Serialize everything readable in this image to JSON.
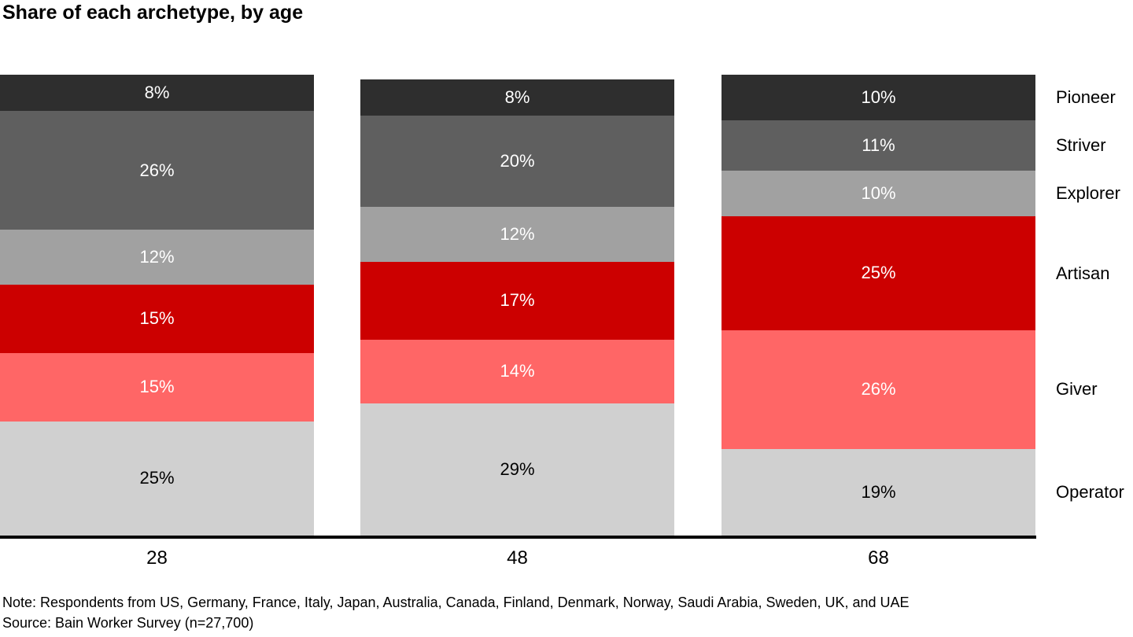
{
  "title": "Share of each archetype, by age",
  "notes": {
    "note": "Note: Respondents from US, Germany, France, Italy, Japan, Australia, Canada, Finland, Denmark, Norway, Saudi Arabia, Sweden, UK, and UAE",
    "source": "Source: Bain Worker Survey (n=27,700)"
  },
  "chart_data": {
    "type": "bar",
    "stacked": true,
    "orientation": "vertical",
    "title": "Share of each archetype, by age",
    "xlabel": "",
    "ylabel": "",
    "grid": false,
    "legend_position": "right-of-last-bar",
    "value_label_format": "{v}%",
    "categories": [
      "28",
      "48",
      "68"
    ],
    "series": [
      {
        "name": "Pioneer",
        "color": "#2e2e2e",
        "label_color": "#ffffff",
        "values": [
          8,
          8,
          10
        ]
      },
      {
        "name": "Striver",
        "color": "#5f5f5f",
        "label_color": "#ffffff",
        "values": [
          26,
          20,
          11
        ]
      },
      {
        "name": "Explorer",
        "color": "#a1a1a1",
        "label_color": "#ffffff",
        "values": [
          12,
          12,
          10
        ]
      },
      {
        "name": "Artisan",
        "color": "#cc0000",
        "label_color": "#ffffff",
        "values": [
          15,
          17,
          25
        ]
      },
      {
        "name": "Giver",
        "color": "#ff6666",
        "label_color": "#ffffff",
        "values": [
          15,
          14,
          26
        ]
      },
      {
        "name": "Operator",
        "color": "#d0d0d0",
        "label_color": "#000000",
        "values": [
          25,
          29,
          19
        ]
      }
    ]
  }
}
